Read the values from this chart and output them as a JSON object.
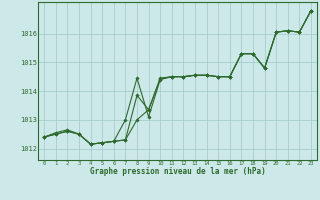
{
  "title": "Graphe pression niveau de la mer (hPa)",
  "background_color": "#cde8e8",
  "plot_bg_color": "#cde8e8",
  "grid_color": "#a0c8c8",
  "line_color": "#2d6a2d",
  "ylim": [
    1011.6,
    1017.1
  ],
  "yticks": [
    1012,
    1013,
    1014,
    1015,
    1016
  ],
  "series_smooth": [
    1012.4,
    1012.55,
    1012.65,
    1012.5,
    1012.15,
    1012.2,
    1012.25,
    1012.3,
    1013.85,
    1013.35,
    1014.45,
    1014.5,
    1014.5,
    1014.55,
    1014.55,
    1014.5,
    1014.5,
    1015.3,
    1015.3,
    1014.8,
    1016.05,
    1016.1,
    1016.05,
    1016.8
  ],
  "series_jagged": [
    1012.4,
    1012.5,
    1012.6,
    1012.5,
    1012.15,
    1012.2,
    1012.25,
    1013.0,
    1014.45,
    1013.1,
    1014.4,
    1014.5,
    1014.5,
    1014.55,
    1014.55,
    1014.5,
    1014.5,
    1015.3,
    1015.3,
    1014.8,
    1016.05,
    1016.1,
    1016.05,
    1016.8
  ],
  "series_mid": [
    1012.4,
    1012.5,
    1012.6,
    1012.5,
    1012.15,
    1012.2,
    1012.25,
    1012.3,
    1013.0,
    1013.35,
    1014.42,
    1014.5,
    1014.5,
    1014.55,
    1014.55,
    1014.5,
    1014.5,
    1015.3,
    1015.3,
    1014.8,
    1016.05,
    1016.1,
    1016.05,
    1016.8
  ]
}
